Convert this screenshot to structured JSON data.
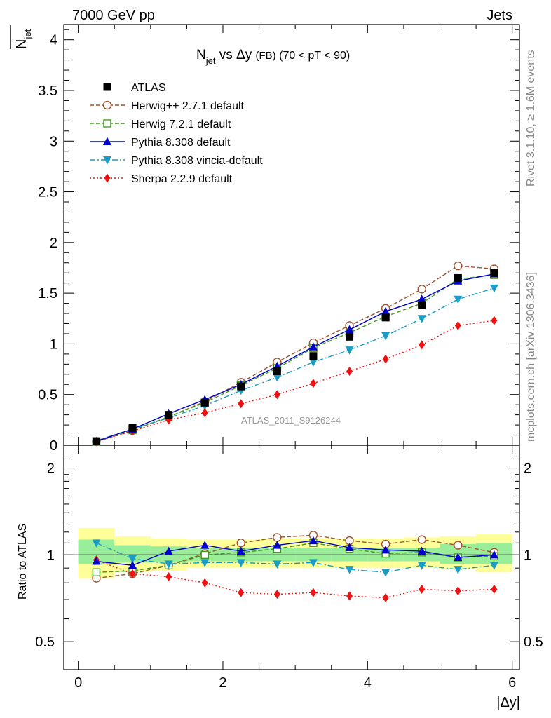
{
  "header": {
    "left": "7000 GeV pp",
    "right": "Jets"
  },
  "side": {
    "rivet": "Rivet 3.1.10, ≥ 1.6M events",
    "site": "mcplots.cern.ch [arXiv:1306.3436]"
  },
  "chart_data": {
    "type": "line",
    "title": {
      "n": "N",
      "n_sub": "jet",
      "vs": " vs Δy ",
      "fb": "(FB)",
      "range": " (70 < pT <  90)"
    },
    "ylabel": {
      "n": "N",
      "sub": "jet"
    },
    "ratio_ylabel": "Ratio to ATLAS",
    "xlabel": "|Δy|",
    "analysis": "ATLAS_2011_S9126244",
    "xlim": [
      -0.2,
      6.1
    ],
    "ylim": [
      0,
      4.15
    ],
    "ratio_ylim": [
      0.4,
      2.4
    ],
    "x_ticks": [
      0,
      2,
      4,
      6
    ],
    "x_tick_labels": [
      "0",
      "2",
      "4",
      "6"
    ],
    "y_ticks": [
      0,
      0.5,
      1,
      1.5,
      2,
      2.5,
      3,
      3.5,
      4
    ],
    "y_tick_labels": [
      "0",
      "0.5",
      "1",
      "1.5",
      "2",
      "2.5",
      "3",
      "3.5",
      "4"
    ],
    "ratio_ticks": [
      0.5,
      1,
      2
    ],
    "ratio_tick_labels": [
      "0.5",
      "1",
      "2"
    ],
    "x": [
      0.25,
      0.75,
      1.25,
      1.75,
      2.25,
      2.75,
      3.25,
      3.75,
      4.25,
      4.75,
      5.25,
      5.75
    ],
    "bins": [
      [
        0,
        0.5
      ],
      [
        0.5,
        1
      ],
      [
        1,
        1.5
      ],
      [
        1.5,
        2
      ],
      [
        2,
        2.5
      ],
      [
        2.5,
        3
      ],
      [
        3,
        3.5
      ],
      [
        3.5,
        4
      ],
      [
        4,
        4.5
      ],
      [
        4.5,
        5
      ],
      [
        5,
        5.5
      ],
      [
        5.5,
        6
      ]
    ],
    "band_inner": [
      [
        0.93,
        1.13
      ],
      [
        0.94,
        1.08
      ],
      [
        0.94,
        1.07
      ],
      [
        0.95,
        1.06
      ],
      [
        0.95,
        1.06
      ],
      [
        0.95,
        1.06
      ],
      [
        0.95,
        1.06
      ],
      [
        0.95,
        1.06
      ],
      [
        0.95,
        1.06
      ],
      [
        0.95,
        1.06
      ],
      [
        0.93,
        1.09
      ],
      [
        0.93,
        1.1
      ]
    ],
    "band_outer": [
      [
        0.83,
        1.24
      ],
      [
        0.87,
        1.16
      ],
      [
        0.88,
        1.14
      ],
      [
        0.9,
        1.13
      ],
      [
        0.9,
        1.13
      ],
      [
        0.9,
        1.14
      ],
      [
        0.9,
        1.14
      ],
      [
        0.9,
        1.14
      ],
      [
        0.9,
        1.14
      ],
      [
        0.9,
        1.15
      ],
      [
        0.89,
        1.16
      ],
      [
        0.87,
        1.18
      ]
    ],
    "series": [
      {
        "name": "ATLAS",
        "color": "#000000",
        "marker": "square",
        "dash": "",
        "values": [
          0.04,
          0.17,
          0.3,
          0.42,
          0.58,
          0.73,
          0.88,
          1.07,
          1.26,
          1.38,
          1.65,
          1.7
        ],
        "ratio": [
          1,
          1,
          1,
          1,
          1,
          1,
          1,
          1,
          1,
          1,
          1,
          1
        ]
      },
      {
        "name": "Herwig++ 2.7.1 default",
        "color": "#a0522d",
        "marker": "open-circle",
        "dash": "6,3",
        "values": [
          0.035,
          0.145,
          0.28,
          0.43,
          0.62,
          0.82,
          1.01,
          1.18,
          1.35,
          1.54,
          1.77,
          1.74
        ],
        "ratio": [
          0.83,
          0.86,
          0.92,
          1.01,
          1.1,
          1.15,
          1.17,
          1.12,
          1.09,
          1.13,
          1.08,
          1.02
        ]
      },
      {
        "name": "Herwig 7.2.1 default",
        "color": "#3c9b1e",
        "marker": "open-square",
        "dash": "6,3",
        "values": [
          0.036,
          0.15,
          0.28,
          0.42,
          0.59,
          0.76,
          0.96,
          1.11,
          1.27,
          1.4,
          1.64,
          1.68
        ],
        "ratio": [
          0.87,
          0.88,
          0.92,
          1.0,
          1.02,
          1.05,
          1.1,
          1.05,
          1.01,
          1.02,
          0.98,
          0.99
        ]
      },
      {
        "name": "Pythia 8.308 default",
        "color": "#0000cc",
        "marker": "triangle-up",
        "dash": "",
        "values": [
          0.04,
          0.16,
          0.31,
          0.45,
          0.6,
          0.78,
          0.97,
          1.14,
          1.32,
          1.44,
          1.62,
          1.69
        ],
        "ratio": [
          0.95,
          0.92,
          1.03,
          1.08,
          1.03,
          1.08,
          1.12,
          1.06,
          1.04,
          1.03,
          0.98,
          1.0
        ]
      },
      {
        "name": "Pythia 8.308 vincia-default",
        "color": "#1a9cc4",
        "marker": "triangle-down",
        "dash": "8,3,2,3",
        "values": [
          0.045,
          0.16,
          0.27,
          0.39,
          0.54,
          0.67,
          0.82,
          0.94,
          1.08,
          1.25,
          1.44,
          1.55
        ],
        "ratio": [
          1.1,
          0.97,
          0.93,
          0.94,
          0.94,
          0.93,
          0.94,
          0.89,
          0.87,
          0.92,
          0.89,
          0.92
        ]
      },
      {
        "name": "Sherpa 2.2.9 default",
        "color": "#ee1111",
        "marker": "diamond",
        "dash": "2,3",
        "values": [
          0.035,
          0.14,
          0.25,
          0.32,
          0.41,
          0.5,
          0.61,
          0.73,
          0.85,
          0.99,
          1.18,
          1.23
        ],
        "ratio": [
          0.96,
          0.86,
          0.84,
          0.8,
          0.74,
          0.73,
          0.74,
          0.72,
          0.71,
          0.76,
          0.75,
          0.76
        ]
      }
    ]
  }
}
